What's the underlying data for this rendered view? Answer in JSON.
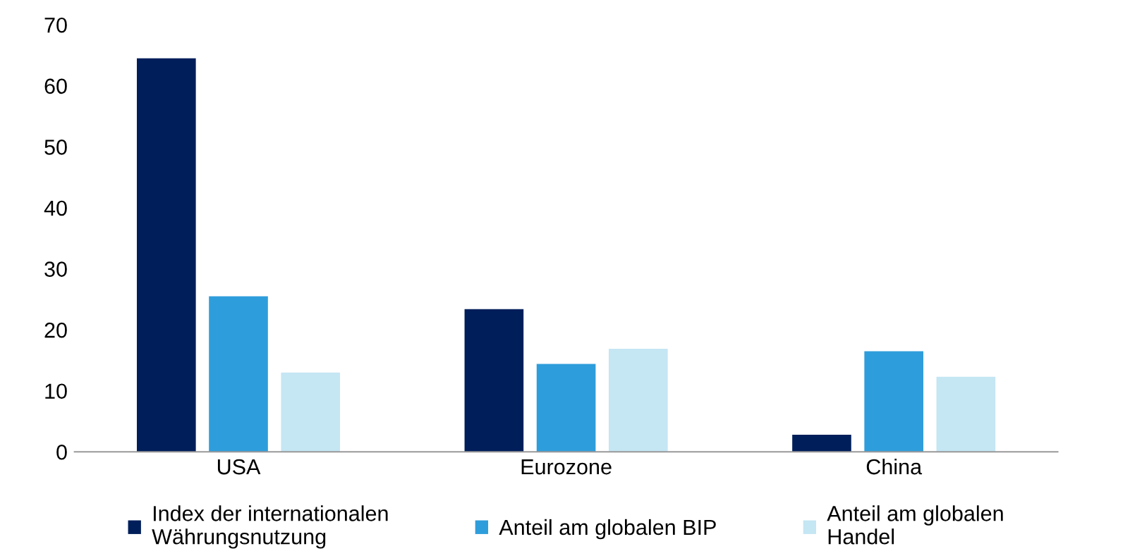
{
  "chart_data": {
    "type": "bar",
    "categories": [
      "USA",
      "Eurozone",
      "China"
    ],
    "series": [
      {
        "name": "Index der internationalen\nWährungsnutzung",
        "color": "#001e5a",
        "values": [
          64.5,
          23.4,
          2.8
        ]
      },
      {
        "name": "Anteil am globalen BIP",
        "color": "#2e9ddb",
        "values": [
          25.5,
          14.4,
          16.5
        ]
      },
      {
        "name": "Anteil am globalen\nHandel",
        "color": "#c5e6f3",
        "values": [
          13.0,
          16.9,
          12.3
        ]
      }
    ],
    "ylim": [
      0,
      70
    ],
    "yticks": [
      0,
      10,
      20,
      30,
      40,
      50,
      60,
      70
    ],
    "grid": false,
    "legend": "bottom"
  }
}
